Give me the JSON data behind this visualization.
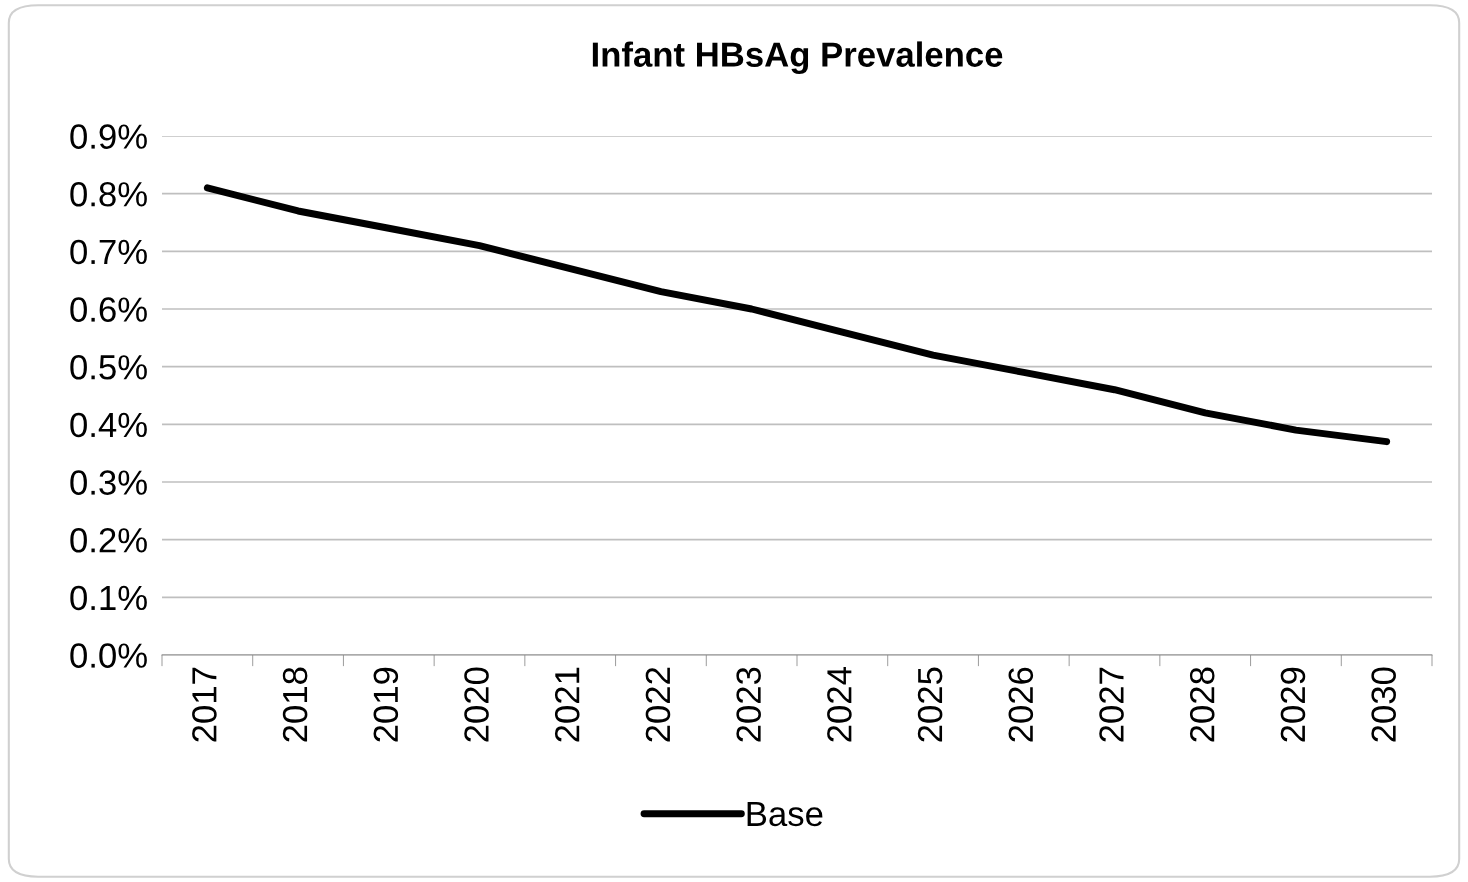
{
  "chart_data": {
    "type": "line",
    "title": "Infant HBsAg Prevalence",
    "categories": [
      "2017",
      "2018",
      "2019",
      "2020",
      "2021",
      "2022",
      "2023",
      "2024",
      "2025",
      "2026",
      "2027",
      "2028",
      "2029",
      "2030"
    ],
    "series": [
      {
        "name": "Base",
        "color": "#000000",
        "values": [
          0.81,
          0.77,
          0.74,
          0.71,
          0.67,
          0.63,
          0.6,
          0.56,
          0.52,
          0.49,
          0.46,
          0.42,
          0.39,
          0.37
        ]
      }
    ],
    "ylim": [
      0,
      0.9
    ],
    "yticks": [
      {
        "value": 0,
        "label": "0.0%"
      },
      {
        "value": 0.1,
        "label": "0.1%"
      },
      {
        "value": 0.2,
        "label": "0.2%"
      },
      {
        "value": 0.3,
        "label": "0.3%"
      },
      {
        "value": 0.4,
        "label": "0.4%"
      },
      {
        "value": 0.5,
        "label": "0.5%"
      },
      {
        "value": 0.6,
        "label": "0.6%"
      },
      {
        "value": 0.7,
        "label": "0.7%"
      },
      {
        "value": 0.8,
        "label": "0.8%"
      },
      {
        "value": 0.9,
        "label": "0.9%"
      }
    ],
    "grid": "y",
    "legend": "bottom",
    "marker": "none",
    "line_style": "solid"
  }
}
